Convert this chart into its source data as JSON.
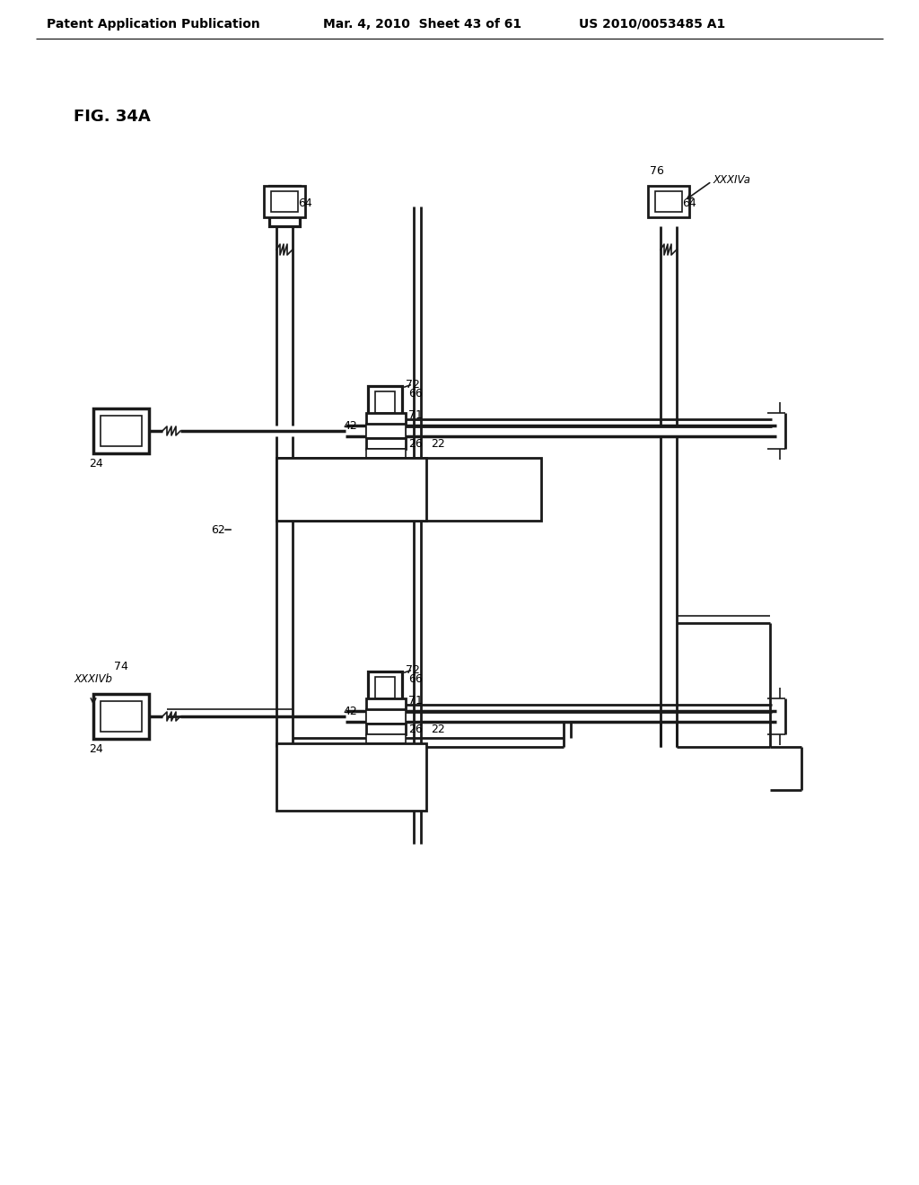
{
  "bg": "#ffffff",
  "lc": "#1a1a1a",
  "lw": 2.0,
  "tlw": 1.2,
  "header_left": "Patent Application Publication",
  "header_mid": "Mar. 4, 2010  Sheet 43 of 61",
  "header_right": "US 2010/0053485 A1",
  "fig_label": "FIG. 34A",
  "note_a": "XXXIVa",
  "note_b": "XXXIVb"
}
